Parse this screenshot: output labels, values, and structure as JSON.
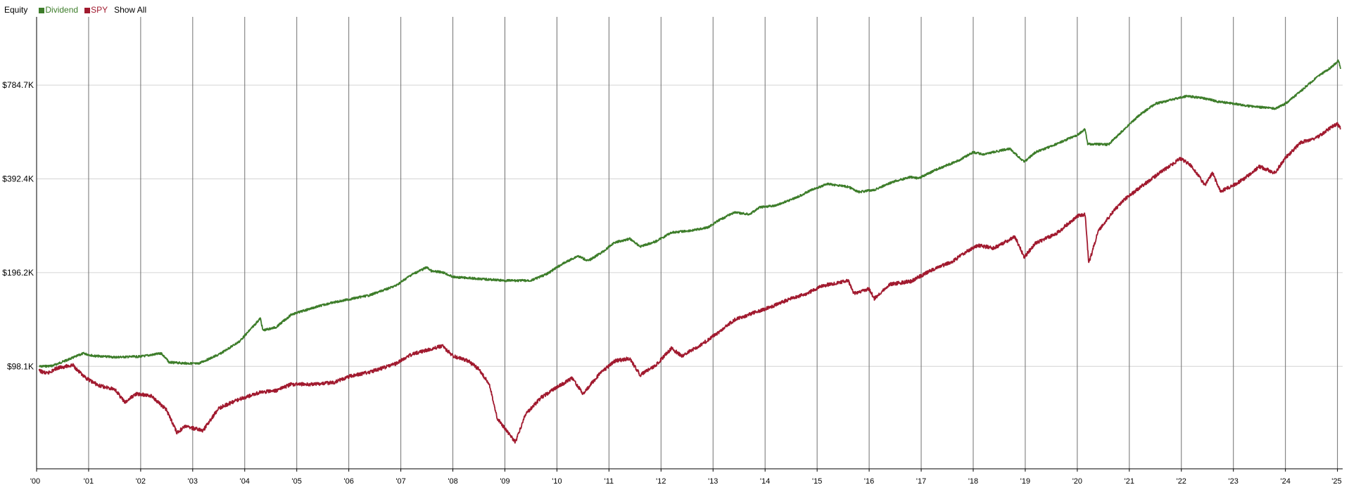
{
  "legend": {
    "title": "Equity",
    "series": [
      {
        "label": "Dividend",
        "color": "#3d7d2a"
      },
      {
        "label": "SPY",
        "color": "#a11a2f"
      }
    ],
    "show_all": "Show All"
  },
  "chart_data": {
    "type": "line",
    "title": "",
    "xlabel": "",
    "ylabel": "Equity",
    "y_scale": "log",
    "y_ticks": [
      {
        "value": 98100,
        "label": "$98.1K"
      },
      {
        "value": 196200,
        "label": "$196.2K"
      },
      {
        "value": 392400,
        "label": "$392.4K"
      },
      {
        "value": 784700,
        "label": "$784.7K"
      }
    ],
    "x_ticks": [
      "'00",
      "'01",
      "'02",
      "'03",
      "'04",
      "'05",
      "'06",
      "'07",
      "'08",
      "'09",
      "'10",
      "'11",
      "'12",
      "'13",
      "'14",
      "'15",
      "'16",
      "'17",
      "'18",
      "'19",
      "'20",
      "'21",
      "'22",
      "'23",
      "'24",
      "'25"
    ],
    "xlim": [
      2000.0,
      2025.1
    ],
    "ylim": [
      46000,
      1300000
    ],
    "grid": true,
    "legend_position": "top-left",
    "series": [
      {
        "name": "Dividend",
        "color": "#3d7d2a",
        "points": [
          [
            2000.05,
            98000
          ],
          [
            2000.3,
            98500
          ],
          [
            2000.6,
            103000
          ],
          [
            2000.9,
            108000
          ],
          [
            2001.1,
            106000
          ],
          [
            2001.5,
            105000
          ],
          [
            2002.0,
            105500
          ],
          [
            2002.4,
            108000
          ],
          [
            2002.55,
            101000
          ],
          [
            2002.8,
            100500
          ],
          [
            2003.1,
            100000
          ],
          [
            2003.5,
            107000
          ],
          [
            2003.9,
            118000
          ],
          [
            2004.2,
            134000
          ],
          [
            2004.3,
            140000
          ],
          [
            2004.35,
            128000
          ],
          [
            2004.6,
            131000
          ],
          [
            2004.9,
            144000
          ],
          [
            2005.3,
            151000
          ],
          [
            2005.6,
            156000
          ],
          [
            2006.0,
            161000
          ],
          [
            2006.4,
            166000
          ],
          [
            2006.9,
            178000
          ],
          [
            2007.2,
            193000
          ],
          [
            2007.5,
            204000
          ],
          [
            2007.6,
            198000
          ],
          [
            2007.8,
            197000
          ],
          [
            2008.0,
            190000
          ],
          [
            2008.4,
            188000
          ],
          [
            2008.8,
            186000
          ],
          [
            2009.0,
            185000
          ],
          [
            2009.5,
            185000
          ],
          [
            2009.8,
            194000
          ],
          [
            2010.1,
            209000
          ],
          [
            2010.4,
            222000
          ],
          [
            2010.6,
            214000
          ],
          [
            2010.9,
            230000
          ],
          [
            2011.1,
            245000
          ],
          [
            2011.4,
            252000
          ],
          [
            2011.6,
            238000
          ],
          [
            2011.9,
            247000
          ],
          [
            2012.2,
            264000
          ],
          [
            2012.6,
            268000
          ],
          [
            2012.9,
            274000
          ],
          [
            2013.1,
            288000
          ],
          [
            2013.4,
            306000
          ],
          [
            2013.7,
            302000
          ],
          [
            2013.9,
            318000
          ],
          [
            2014.2,
            322000
          ],
          [
            2014.6,
            342000
          ],
          [
            2014.9,
            362000
          ],
          [
            2015.2,
            378000
          ],
          [
            2015.6,
            370000
          ],
          [
            2015.8,
            356000
          ],
          [
            2016.1,
            362000
          ],
          [
            2016.5,
            386000
          ],
          [
            2016.8,
            398000
          ],
          [
            2016.95,
            394000
          ],
          [
            2017.3,
            421000
          ],
          [
            2017.7,
            448000
          ],
          [
            2018.0,
            478000
          ],
          [
            2018.2,
            470000
          ],
          [
            2018.7,
            491000
          ],
          [
            2018.98,
            445000
          ],
          [
            2019.2,
            478000
          ],
          [
            2019.6,
            508000
          ],
          [
            2020.0,
            543000
          ],
          [
            2020.15,
            566000
          ],
          [
            2020.2,
            508000
          ],
          [
            2020.5,
            506000
          ],
          [
            2020.6,
            506000
          ],
          [
            2020.9,
            566000
          ],
          [
            2021.2,
            630000
          ],
          [
            2021.5,
            684000
          ],
          [
            2021.9,
            710000
          ],
          [
            2022.1,
            724000
          ],
          [
            2022.4,
            714000
          ],
          [
            2022.7,
            695000
          ],
          [
            2023.0,
            684000
          ],
          [
            2023.3,
            672000
          ],
          [
            2023.8,
            660000
          ],
          [
            2024.0,
            684000
          ],
          [
            2024.3,
            752000
          ],
          [
            2024.6,
            832000
          ],
          [
            2024.9,
            900000
          ],
          [
            2025.02,
            943000
          ],
          [
            2025.06,
            885000
          ]
        ]
      },
      {
        "name": "SPY",
        "color": "#a11a2f",
        "points": [
          [
            2000.05,
            95000
          ],
          [
            2000.2,
            93000
          ],
          [
            2000.4,
            97000
          ],
          [
            2000.7,
            99000
          ],
          [
            2000.9,
            91000
          ],
          [
            2001.2,
            85000
          ],
          [
            2001.5,
            83000
          ],
          [
            2001.7,
            75000
          ],
          [
            2001.9,
            80000
          ],
          [
            2002.2,
            79000
          ],
          [
            2002.5,
            71000
          ],
          [
            2002.7,
            60000
          ],
          [
            2002.85,
            63000
          ],
          [
            2003.2,
            61000
          ],
          [
            2003.5,
            72000
          ],
          [
            2003.9,
            77000
          ],
          [
            2004.3,
            81000
          ],
          [
            2004.6,
            82000
          ],
          [
            2004.9,
            86000
          ],
          [
            2005.3,
            86000
          ],
          [
            2005.7,
            87000
          ],
          [
            2006.0,
            91000
          ],
          [
            2006.4,
            94000
          ],
          [
            2006.9,
            100000
          ],
          [
            2007.2,
            107000
          ],
          [
            2007.6,
            112000
          ],
          [
            2007.8,
            114000
          ],
          [
            2008.0,
            106000
          ],
          [
            2008.3,
            102000
          ],
          [
            2008.5,
            96000
          ],
          [
            2008.7,
            86000
          ],
          [
            2008.85,
            67000
          ],
          [
            2009.0,
            62000
          ],
          [
            2009.2,
            56000
          ],
          [
            2009.4,
            69000
          ],
          [
            2009.7,
            78000
          ],
          [
            2010.0,
            84000
          ],
          [
            2010.3,
            90000
          ],
          [
            2010.5,
            80000
          ],
          [
            2010.8,
            92000
          ],
          [
            2011.1,
            102000
          ],
          [
            2011.4,
            104000
          ],
          [
            2011.6,
            92000
          ],
          [
            2011.9,
            99000
          ],
          [
            2012.2,
            112000
          ],
          [
            2012.4,
            106000
          ],
          [
            2012.8,
            116000
          ],
          [
            2013.1,
            126000
          ],
          [
            2013.4,
            138000
          ],
          [
            2013.8,
            146000
          ],
          [
            2014.1,
            152000
          ],
          [
            2014.5,
            162000
          ],
          [
            2014.8,
            168000
          ],
          [
            2015.1,
            178000
          ],
          [
            2015.4,
            182000
          ],
          [
            2015.6,
            185000
          ],
          [
            2015.7,
            168000
          ],
          [
            2016.0,
            174000
          ],
          [
            2016.1,
            162000
          ],
          [
            2016.4,
            180000
          ],
          [
            2016.8,
            184000
          ],
          [
            2017.2,
            200000
          ],
          [
            2017.6,
            213000
          ],
          [
            2017.9,
            231000
          ],
          [
            2018.1,
            240000
          ],
          [
            2018.4,
            235000
          ],
          [
            2018.8,
            256000
          ],
          [
            2018.98,
            220000
          ],
          [
            2019.2,
            244000
          ],
          [
            2019.6,
            262000
          ],
          [
            2020.0,
            298000
          ],
          [
            2020.15,
            302000
          ],
          [
            2020.22,
            210000
          ],
          [
            2020.4,
            266000
          ],
          [
            2020.7,
            310000
          ],
          [
            2020.9,
            336000
          ],
          [
            2021.2,
            368000
          ],
          [
            2021.6,
            412000
          ],
          [
            2021.98,
            456000
          ],
          [
            2022.2,
            432000
          ],
          [
            2022.45,
            374000
          ],
          [
            2022.6,
            410000
          ],
          [
            2022.75,
            358000
          ],
          [
            2022.95,
            370000
          ],
          [
            2023.2,
            392000
          ],
          [
            2023.5,
            430000
          ],
          [
            2023.8,
            410000
          ],
          [
            2024.0,
            458000
          ],
          [
            2024.3,
            514000
          ],
          [
            2024.6,
            532000
          ],
          [
            2024.9,
            578000
          ],
          [
            2025.0,
            588000
          ],
          [
            2025.06,
            570000
          ]
        ]
      }
    ]
  }
}
